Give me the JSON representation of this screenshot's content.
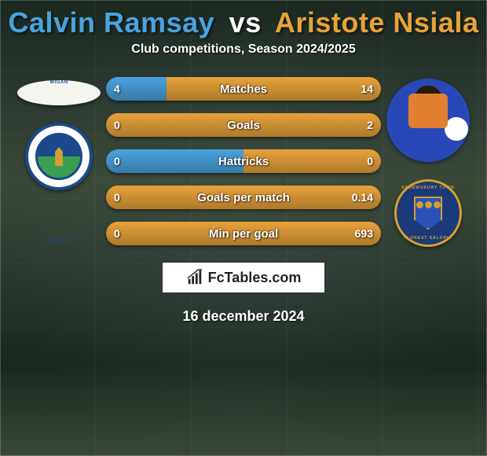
{
  "title": {
    "player1": "Calvin Ramsay",
    "vs": "vs",
    "player2": "Aristote Nsiala"
  },
  "subtitle": "Club competitions, Season 2024/2025",
  "colors": {
    "player1": "#4aa3e0",
    "player2": "#e8a23a",
    "bar_shadow": "rgba(0,0,0,0.35)"
  },
  "bars": [
    {
      "label": "Matches",
      "left_val": "4",
      "right_val": "14",
      "left_pct": 22,
      "right_pct": 78
    },
    {
      "label": "Goals",
      "left_val": "0",
      "right_val": "2",
      "left_pct": 0,
      "right_pct": 100
    },
    {
      "label": "Hattricks",
      "left_val": "0",
      "right_val": "0",
      "left_pct": 50,
      "right_pct": 50
    },
    {
      "label": "Goals per match",
      "left_val": "0",
      "right_val": "0.14",
      "left_pct": 0,
      "right_pct": 100
    },
    {
      "label": "Min per goal",
      "left_val": "0",
      "right_val": "693",
      "left_pct": 0,
      "right_pct": 100
    }
  ],
  "clubs": {
    "left": {
      "name": "Wigan Athletic",
      "top_text": "WIGAN",
      "bottom_text": "ATHLETIC"
    },
    "right": {
      "name": "Shrewsbury Town",
      "top_text": "SHREWSBURY TOWN",
      "bottom_text": "FLOREAT SALOPIA"
    }
  },
  "brand": "FcTables.com",
  "date": "16 december 2024"
}
